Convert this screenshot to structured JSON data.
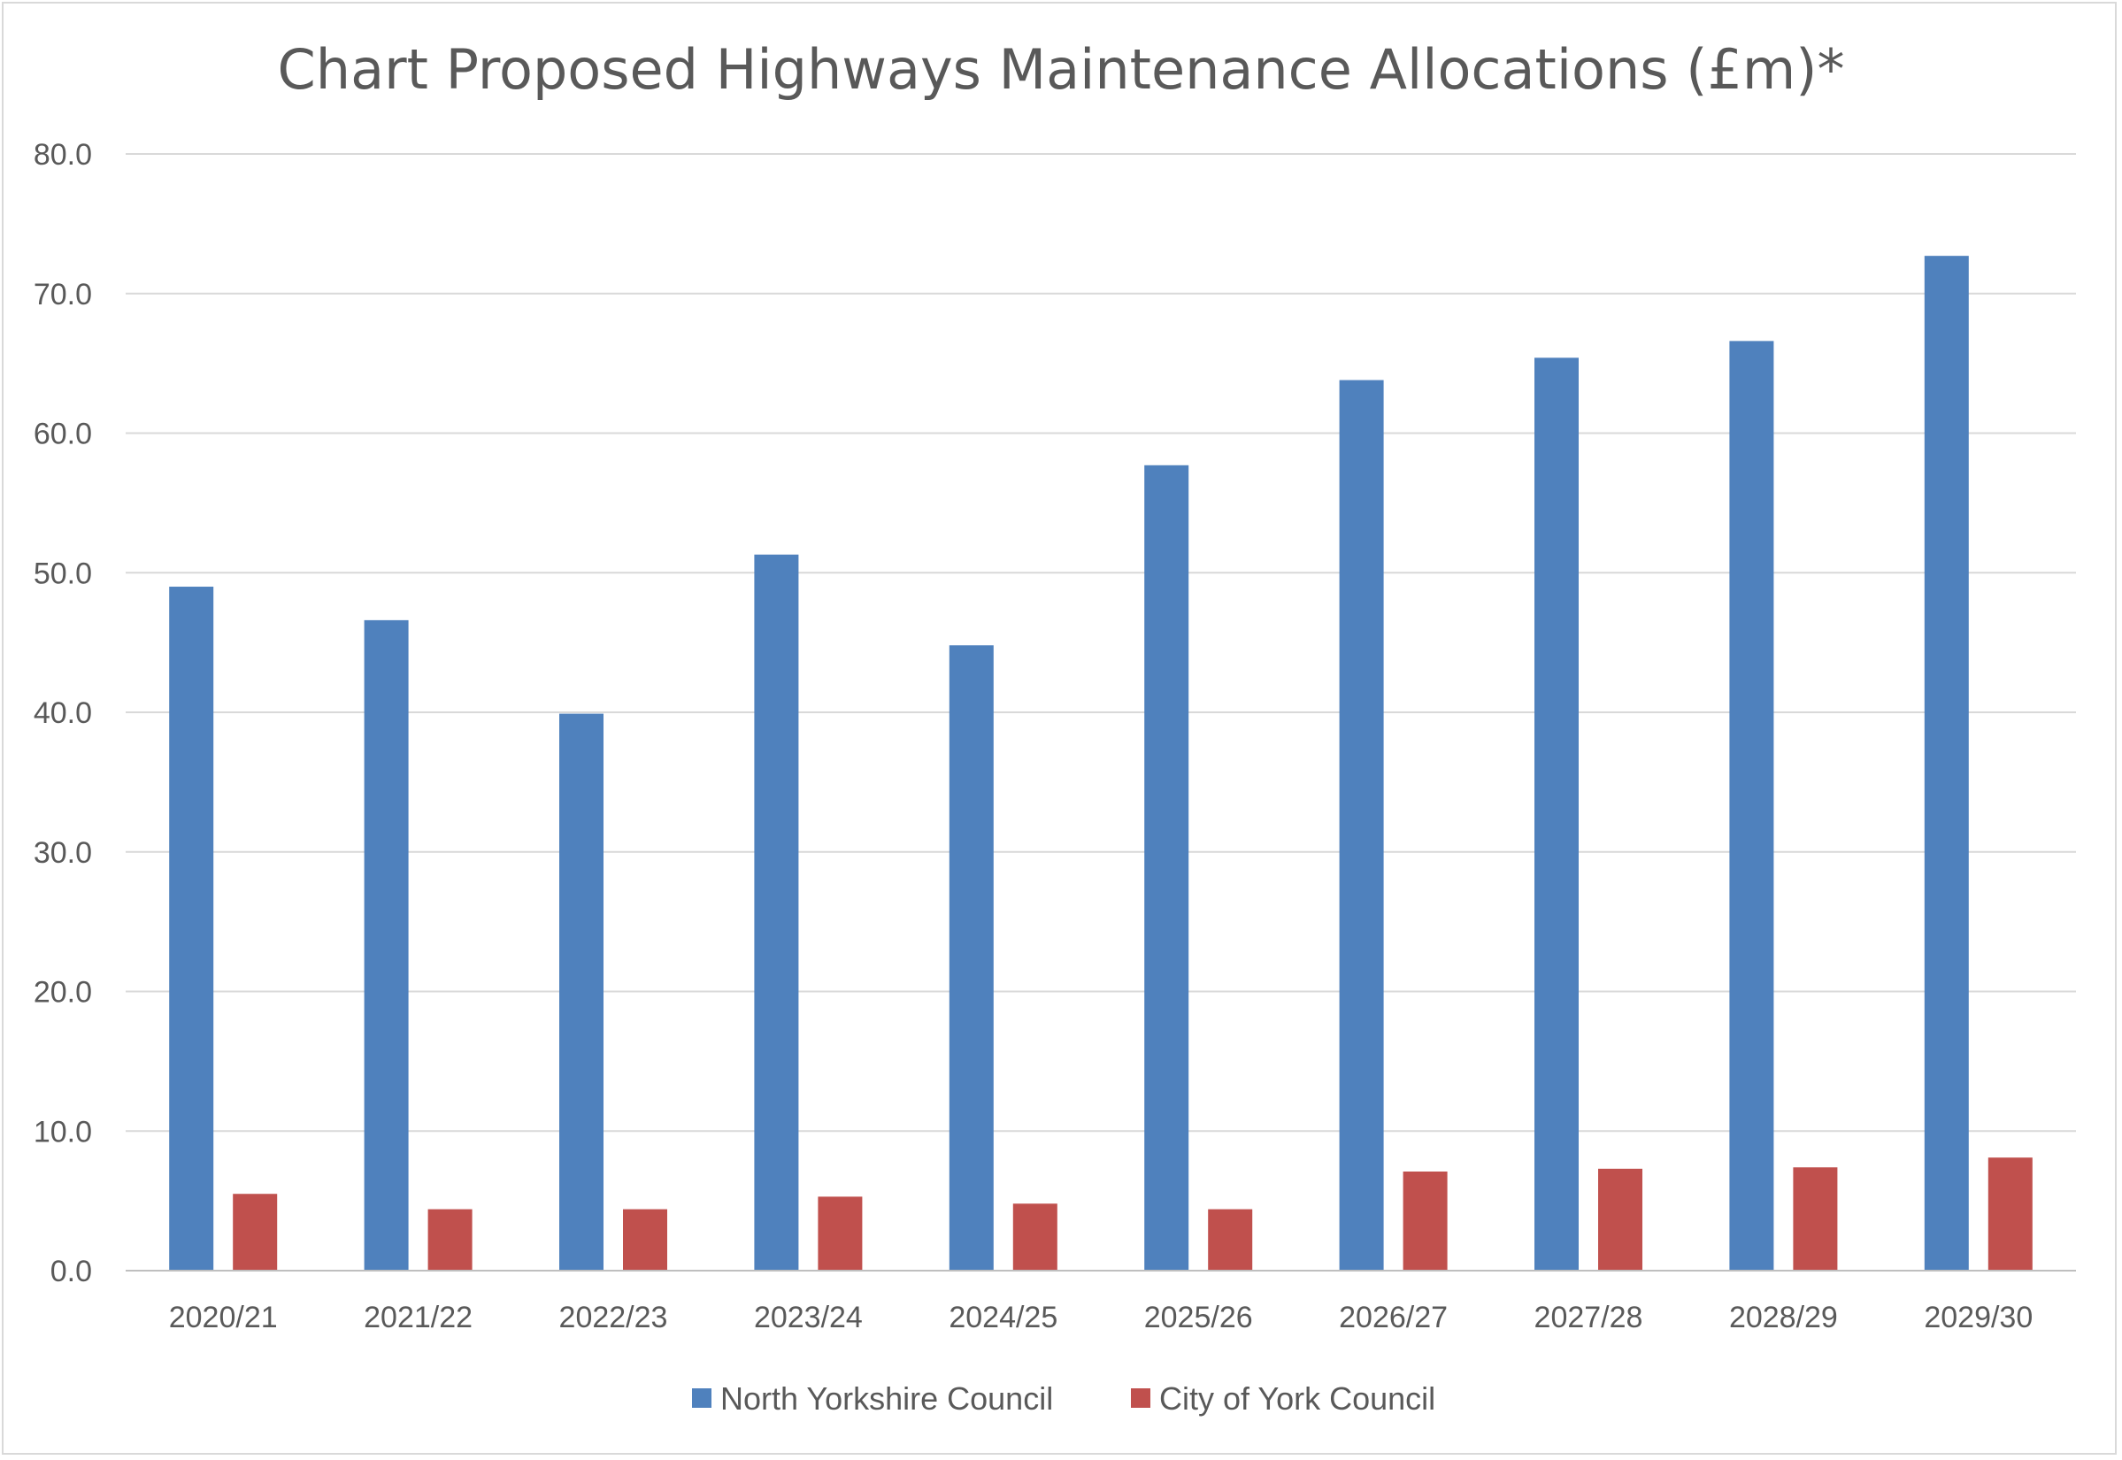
{
  "chart_data": {
    "type": "bar",
    "title": "Chart Proposed Highways Maintenance Allocations (£m)*",
    "xlabel": "",
    "ylabel": "",
    "categories": [
      "2020/21",
      "2021/22",
      "2022/23",
      "2023/24",
      "2024/25",
      "2025/26",
      "2026/27",
      "2027/28",
      "2028/29",
      "2029/30"
    ],
    "series": [
      {
        "name": "North Yorkshire Council",
        "color": "#4f81bd",
        "values": [
          49.0,
          46.6,
          39.9,
          51.3,
          44.8,
          57.7,
          63.8,
          65.4,
          66.6,
          72.7
        ]
      },
      {
        "name": "City of York Council",
        "color": "#c0504d",
        "values": [
          5.5,
          4.4,
          4.4,
          5.3,
          4.8,
          4.4,
          7.1,
          7.3,
          7.4,
          8.1
        ]
      }
    ],
    "ylim": [
      0,
      80
    ],
    "yticks": [
      "0.0",
      "10.0",
      "20.0",
      "30.0",
      "40.0",
      "50.0",
      "60.0",
      "70.0",
      "80.0"
    ],
    "grid": true,
    "legend_position": "bottom"
  }
}
